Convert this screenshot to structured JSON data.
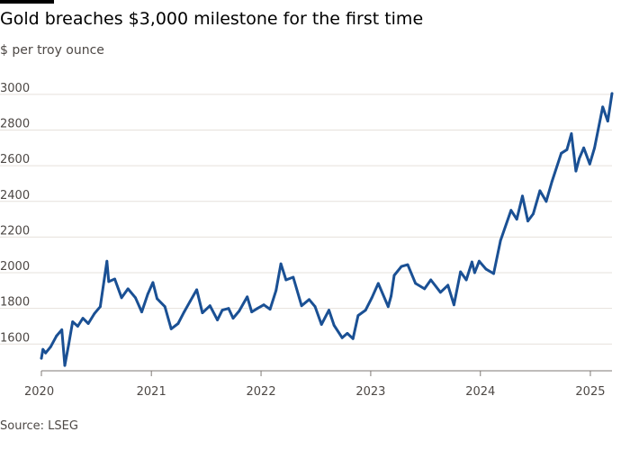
{
  "header": {
    "title": "Gold breaches $3,000 milestone for the first time",
    "subtitle": "$ per troy ounce"
  },
  "footer": {
    "source": "Source: LSEG"
  },
  "colors": {
    "line": "#1a5094",
    "grid": "#e6e1dc",
    "axis": "#7f7a76",
    "accent_bar": "#000000"
  },
  "chart_data": {
    "type": "line",
    "title": "Gold breaches $3,000 milestone for the first time",
    "subtitle": "$ per troy ounce",
    "xlabel": "",
    "ylabel": "",
    "ylim": [
      1450,
      3050
    ],
    "xlim": [
      "2020-01-01",
      "2025-03-14"
    ],
    "y_ticks": [
      1600,
      1800,
      2000,
      2200,
      2400,
      2600,
      2800,
      3000
    ],
    "x_ticks": [
      "2020",
      "2021",
      "2022",
      "2023",
      "2024",
      "2025"
    ],
    "grid": true,
    "series": [
      {
        "x": [
          "2020-01-01",
          "2020-01-06",
          "2020-01-15",
          "2020-02-01",
          "2020-02-20",
          "2020-03-09",
          "2020-03-19",
          "2020-04-01",
          "2020-04-14",
          "2020-05-01",
          "2020-05-18",
          "2020-06-05",
          "2020-06-25",
          "2020-07-15",
          "2020-08-06",
          "2020-08-12",
          "2020-09-01",
          "2020-09-24",
          "2020-10-15",
          "2020-11-09",
          "2020-11-30",
          "2020-12-20",
          "2021-01-06",
          "2021-01-20",
          "2021-02-15",
          "2021-03-08",
          "2021-03-31",
          "2021-04-20",
          "2021-05-10",
          "2021-06-01",
          "2021-06-20",
          "2021-07-15",
          "2021-08-09",
          "2021-08-25",
          "2021-09-15",
          "2021-09-30",
          "2021-10-20",
          "2021-11-16",
          "2021-12-01",
          "2021-12-20",
          "2022-01-10",
          "2022-01-31",
          "2022-02-20",
          "2022-03-08",
          "2022-03-25",
          "2022-04-18",
          "2022-05-16",
          "2022-06-10",
          "2022-06-30",
          "2022-07-21",
          "2022-08-15",
          "2022-09-01",
          "2022-09-28",
          "2022-10-15",
          "2022-11-03",
          "2022-11-20",
          "2022-12-15",
          "2023-01-05",
          "2023-01-26",
          "2023-02-28",
          "2023-03-10",
          "2023-03-20",
          "2023-04-13",
          "2023-05-04",
          "2023-05-30",
          "2023-06-29",
          "2023-07-20",
          "2023-08-21",
          "2023-09-15",
          "2023-10-05",
          "2023-10-27",
          "2023-11-15",
          "2023-12-04",
          "2023-12-13",
          "2023-12-28",
          "2024-01-20",
          "2024-02-14",
          "2024-03-08",
          "2024-04-12",
          "2024-05-01",
          "2024-05-20",
          "2024-06-07",
          "2024-06-25",
          "2024-07-17",
          "2024-08-07",
          "2024-08-26",
          "2024-09-26",
          "2024-10-15",
          "2024-10-30",
          "2024-11-14",
          "2024-11-25",
          "2024-12-10",
          "2024-12-30",
          "2025-01-15",
          "2025-02-11",
          "2025-02-28",
          "2025-03-14"
        ],
        "values": [
          1520,
          1570,
          1550,
          1585,
          1645,
          1680,
          1480,
          1600,
          1725,
          1700,
          1745,
          1715,
          1770,
          1810,
          2065,
          1950,
          1965,
          1860,
          1910,
          1860,
          1780,
          1880,
          1945,
          1855,
          1810,
          1685,
          1715,
          1780,
          1840,
          1905,
          1775,
          1815,
          1735,
          1790,
          1800,
          1745,
          1785,
          1865,
          1780,
          1800,
          1820,
          1795,
          1900,
          2050,
          1960,
          1975,
          1815,
          1850,
          1810,
          1710,
          1790,
          1705,
          1635,
          1660,
          1630,
          1760,
          1790,
          1860,
          1940,
          1810,
          1870,
          1985,
          2035,
          2045,
          1940,
          1910,
          1960,
          1890,
          1930,
          1820,
          2005,
          1960,
          2060,
          2000,
          2065,
          2020,
          1995,
          2180,
          2350,
          2300,
          2430,
          2290,
          2330,
          2460,
          2400,
          2510,
          2670,
          2690,
          2780,
          2570,
          2640,
          2700,
          2610,
          2700,
          2930,
          2850,
          3005
        ]
      }
    ]
  }
}
